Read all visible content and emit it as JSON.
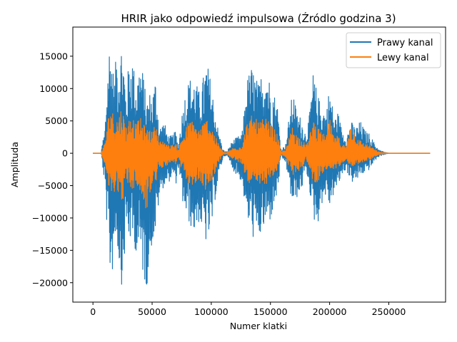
{
  "chart_data": {
    "type": "line",
    "title": "HRIR jako odpowiedź impulsowa (Źródlo godzina 3)",
    "xlabel": "Numer klatki",
    "ylabel": "Amplituda",
    "xlim": [
      -17000,
      298000
    ],
    "ylim": [
      -23000,
      19500
    ],
    "x_ticks": [
      0,
      50000,
      100000,
      150000,
      200000,
      250000
    ],
    "x_tick_labels": [
      "0",
      "50000",
      "100000",
      "150000",
      "200000",
      "250000"
    ],
    "y_ticks": [
      -20000,
      -15000,
      -10000,
      -5000,
      0,
      5000,
      10000,
      15000
    ],
    "y_tick_labels": [
      "−20000",
      "−15000",
      "−10000",
      "−5000",
      "0",
      "5000",
      "10000",
      "15000"
    ],
    "grid": false,
    "legend_position": "top-right",
    "series": [
      {
        "name": "Prawy kanal",
        "color": "#1f77b4",
        "x": [
          0,
          7000,
          8000,
          10000,
          12000,
          14000,
          16000,
          18000,
          20000,
          22000,
          24000,
          26000,
          28000,
          30000,
          33000,
          36000,
          40000,
          43000,
          45000,
          48000,
          50000,
          53000,
          56000,
          60000,
          64000,
          68000,
          70000,
          72000,
          75000,
          78000,
          80000,
          83000,
          86000,
          90000,
          94000,
          96000,
          100000,
          103000,
          106000,
          110000,
          113000,
          118000,
          122000,
          126000,
          130000,
          134000,
          137000,
          140000,
          143000,
          146000,
          150000,
          153000,
          156000,
          159000,
          163000,
          166000,
          169000,
          172000,
          176000,
          180000,
          183000,
          186000,
          190000,
          193000,
          197000,
          200000,
          204000,
          207000,
          210000,
          214000,
          218000,
          222000,
          226000,
          230000,
          234000,
          238000,
          242000,
          246000,
          250000,
          260000,
          270000,
          285000
        ],
        "upper": [
          0,
          0,
          1800,
          3500,
          12000,
          17500,
          15500,
          11000,
          16500,
          14000,
          17300,
          15000,
          9000,
          13500,
          16000,
          11000,
          14500,
          12000,
          8000,
          9500,
          9000,
          12000,
          4000,
          5000,
          2500,
          3000,
          3500,
          1000,
          6000,
          9500,
          11000,
          12000,
          11500,
          9500,
          12500,
          14500,
          11000,
          7000,
          3500,
          500,
          200,
          2000,
          2500,
          3000,
          11500,
          13500,
          12500,
          10500,
          13000,
          14000,
          11000,
          9500,
          7500,
          500,
          1500,
          6000,
          10000,
          6500,
          5500,
          3000,
          6000,
          12500,
          9000,
          7500,
          6500,
          10500,
          5500,
          6500,
          4000,
          2500,
          5000,
          4000,
          5000,
          3500,
          3000,
          1500,
          500,
          200,
          0,
          0,
          0,
          0
        ],
        "lower": [
          0,
          0,
          -1800,
          -5000,
          -12000,
          -18500,
          -19500,
          -15000,
          -12500,
          -17500,
          -20500,
          -18500,
          -12000,
          -13500,
          -14000,
          -15000,
          -17000,
          -19500,
          -21500,
          -16500,
          -14000,
          -12500,
          -7000,
          -5000,
          -4500,
          -3500,
          -5000,
          -2000,
          -7000,
          -9500,
          -10500,
          -11500,
          -12500,
          -10500,
          -13500,
          -14000,
          -12500,
          -7500,
          -4000,
          -600,
          -300,
          -2500,
          -3500,
          -4500,
          -10500,
          -12000,
          -14500,
          -13500,
          -12500,
          -11500,
          -10500,
          -8500,
          -6500,
          -600,
          -1500,
          -5500,
          -8500,
          -7000,
          -6000,
          -2500,
          -5500,
          -10500,
          -11000,
          -8000,
          -6500,
          -8500,
          -6000,
          -5500,
          -3500,
          -2500,
          -4500,
          -4500,
          -3500,
          -3000,
          -2500,
          -1200,
          -500,
          -200,
          0,
          0,
          0,
          0
        ]
      },
      {
        "name": "Lewy kanal",
        "color": "#ff7f0e",
        "x": [
          0,
          7000,
          8000,
          10000,
          12000,
          14000,
          16000,
          18000,
          20000,
          22000,
          24000,
          26000,
          28000,
          30000,
          33000,
          36000,
          40000,
          43000,
          45000,
          48000,
          50000,
          53000,
          56000,
          60000,
          64000,
          68000,
          70000,
          72000,
          75000,
          78000,
          80000,
          83000,
          86000,
          90000,
          94000,
          96000,
          100000,
          103000,
          106000,
          110000,
          113000,
          118000,
          122000,
          126000,
          130000,
          134000,
          137000,
          140000,
          143000,
          146000,
          150000,
          153000,
          156000,
          159000,
          163000,
          166000,
          169000,
          172000,
          176000,
          180000,
          183000,
          186000,
          190000,
          193000,
          197000,
          200000,
          204000,
          207000,
          210000,
          214000,
          218000,
          222000,
          226000,
          230000,
          234000,
          238000,
          242000,
          246000,
          250000,
          260000,
          270000,
          285000
        ],
        "upper": [
          0,
          0,
          800,
          1500,
          4500,
          6800,
          7200,
          5000,
          5500,
          6000,
          7300,
          6000,
          4000,
          5200,
          6200,
          4500,
          5500,
          4500,
          3500,
          4000,
          3200,
          4800,
          1800,
          2000,
          1200,
          1300,
          1500,
          500,
          2500,
          3500,
          4800,
          5200,
          4500,
          3800,
          5000,
          5500,
          4500,
          2800,
          1500,
          200,
          100,
          800,
          1000,
          1200,
          4800,
          5800,
          5500,
          4800,
          5200,
          5500,
          4500,
          3800,
          3000,
          200,
          600,
          2500,
          4500,
          3000,
          2300,
          1300,
          2500,
          5600,
          4000,
          3200,
          2800,
          5400,
          2300,
          2800,
          1700,
          1000,
          5000,
          3000,
          2000,
          1500,
          1300,
          600,
          200,
          100,
          0,
          0,
          0,
          0
        ],
        "lower": [
          0,
          0,
          -800,
          -1500,
          -4200,
          -6500,
          -7000,
          -6000,
          -5200,
          -6500,
          -7800,
          -6800,
          -4500,
          -5000,
          -5800,
          -5200,
          -6200,
          -8000,
          -9000,
          -7000,
          -5200,
          -4800,
          -2500,
          -2000,
          -1800,
          -1300,
          -1800,
          -700,
          -2800,
          -3800,
          -4500,
          -5000,
          -5200,
          -4200,
          -5500,
          -5800,
          -5000,
          -3000,
          -1500,
          -200,
          -100,
          -900,
          -1300,
          -1700,
          -4200,
          -5000,
          -6000,
          -5500,
          -5000,
          -4800,
          -4300,
          -3500,
          -2700,
          -200,
          -600,
          -2300,
          -3500,
          -2900,
          -2500,
          -1000,
          -2200,
          -4500,
          -4500,
          -3300,
          -2700,
          -3500,
          -2500,
          -2300,
          -1500,
          -1000,
          -2000,
          -1900,
          -1500,
          -1300,
          -1000,
          -500,
          -200,
          -100,
          0,
          0,
          0,
          0
        ]
      }
    ]
  }
}
